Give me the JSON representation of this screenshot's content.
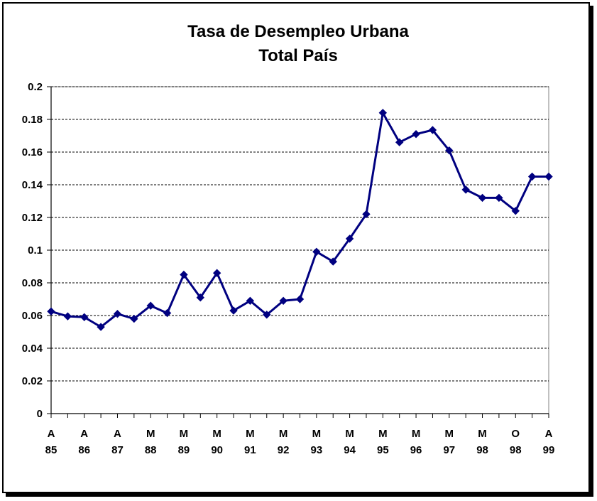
{
  "chart_data": {
    "type": "line",
    "title": "Tasa de Desempleo Urbana",
    "subtitle": "Total País",
    "xlabel": "",
    "ylabel": "",
    "ylim": [
      0,
      0.2
    ],
    "yticks": [
      "0",
      "0.02",
      "0.04",
      "0.06",
      "0.08",
      "0.1",
      "0.12",
      "0.14",
      "0.16",
      "0.18",
      "0.2"
    ],
    "grid": "horizontal dashed",
    "x_tick_labels": [
      {
        "top": "A",
        "bottom": "85"
      },
      {
        "top": "A",
        "bottom": "86"
      },
      {
        "top": "A",
        "bottom": "87"
      },
      {
        "top": "M",
        "bottom": "88"
      },
      {
        "top": "M",
        "bottom": "89"
      },
      {
        "top": "M",
        "bottom": "90"
      },
      {
        "top": "M",
        "bottom": "91"
      },
      {
        "top": "M",
        "bottom": "92"
      },
      {
        "top": "M",
        "bottom": "93"
      },
      {
        "top": "M",
        "bottom": "94"
      },
      {
        "top": "M",
        "bottom": "95"
      },
      {
        "top": "M",
        "bottom": "96"
      },
      {
        "top": "M",
        "bottom": "97"
      },
      {
        "top": "M",
        "bottom": "98"
      },
      {
        "top": "O",
        "bottom": "98"
      },
      {
        "top": "A",
        "bottom": "99"
      }
    ],
    "series": [
      {
        "color": "#000080",
        "values": [
          0.0625,
          0.0595,
          0.059,
          0.053,
          0.061,
          0.058,
          0.066,
          0.0615,
          0.085,
          0.071,
          0.086,
          0.063,
          0.069,
          0.0605,
          0.069,
          0.07,
          0.099,
          0.093,
          0.107,
          0.122,
          0.184,
          0.166,
          0.171,
          0.1735,
          0.161,
          0.137,
          0.132,
          0.132,
          0.124,
          0.145,
          0.145
        ]
      }
    ]
  }
}
